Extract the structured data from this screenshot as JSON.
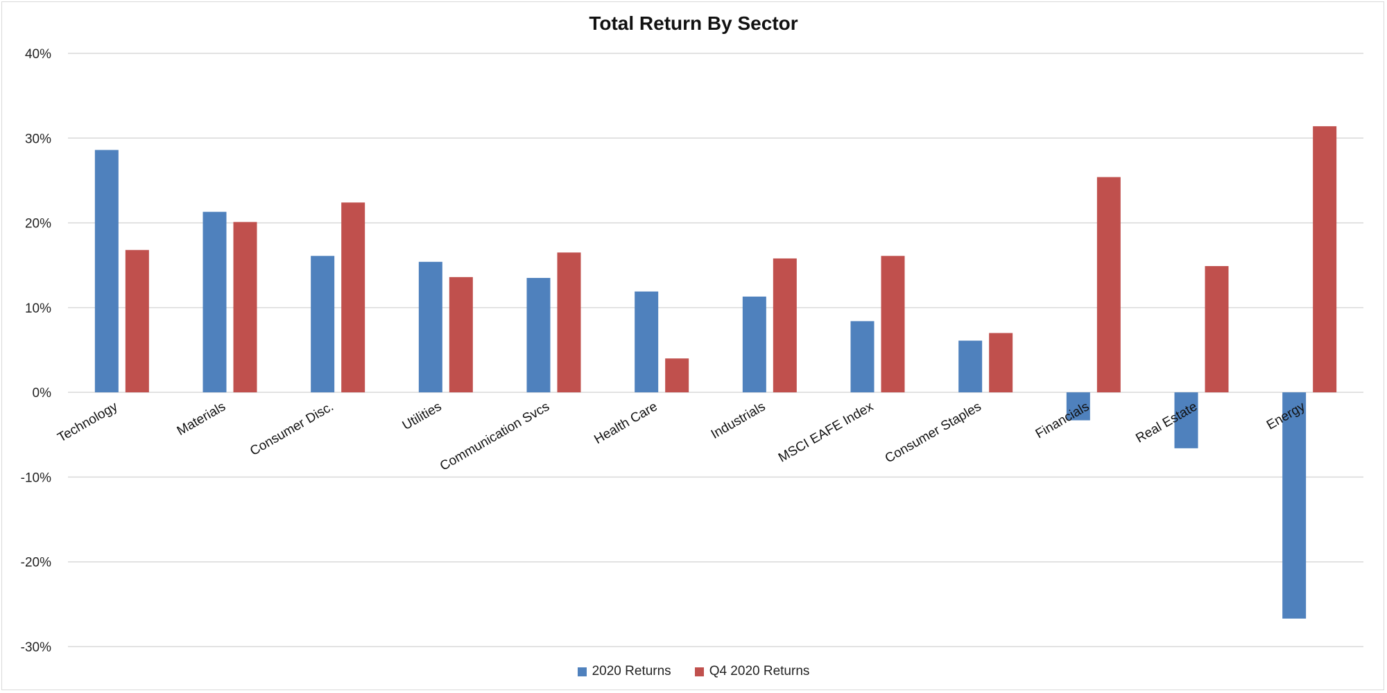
{
  "chart_data": {
    "type": "bar",
    "title": "Total Return By Sector",
    "xlabel": "",
    "ylabel": "",
    "ylim": [
      -30,
      40
    ],
    "yticks": [
      -30,
      -20,
      -10,
      0,
      10,
      20,
      30,
      40
    ],
    "ytick_labels": [
      "-30%",
      "-20%",
      "-10%",
      "0%",
      "10%",
      "20%",
      "30%",
      "40%"
    ],
    "grid": true,
    "legend_position": "bottom",
    "categories": [
      "Technology",
      "Materials",
      "Consumer Disc.",
      "Utilities",
      "Communication Svcs",
      "Health Care",
      "Industrials",
      "MSCI EAFE Index",
      "Consumer Staples",
      "Financials",
      "Real Estate",
      "Energy"
    ],
    "series": [
      {
        "name": "2020 Returns",
        "color": "#4f81bd",
        "values": [
          28.6,
          21.3,
          16.1,
          15.4,
          13.5,
          11.9,
          11.3,
          8.4,
          6.1,
          -3.3,
          -6.6,
          -26.7
        ]
      },
      {
        "name": "Q4 2020 Returns",
        "color": "#c0504d",
        "values": [
          16.8,
          20.1,
          22.4,
          13.6,
          16.5,
          4.0,
          15.8,
          16.1,
          7.0,
          25.4,
          14.9,
          31.4
        ]
      }
    ]
  }
}
